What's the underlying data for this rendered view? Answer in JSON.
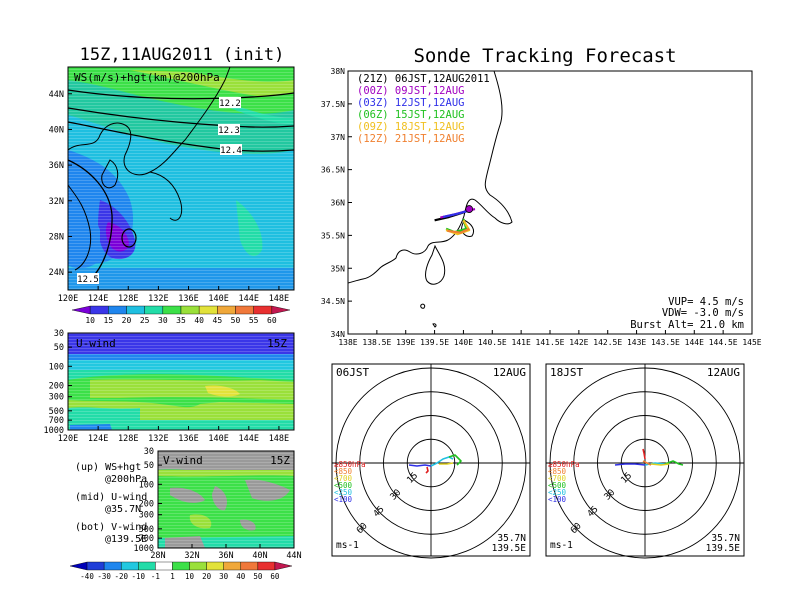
{
  "left_title": "15Z,11AUG2011 (init)",
  "right_title": "Sonde Tracking Forecast",
  "top_panel": {
    "label": "WS(m/s)+hgt(km)@200hPa",
    "lat_labels": [
      "44N",
      "40N",
      "36N",
      "32N",
      "28N",
      "24N"
    ],
    "lon_labels": [
      "120E",
      "124E",
      "128E",
      "132E",
      "136E",
      "140E",
      "144E",
      "148E"
    ],
    "contour_labels": [
      "12.2",
      "12.3",
      "12.4",
      "12.5"
    ],
    "colorbar": {
      "labels": [
        "10",
        "15",
        "20",
        "25",
        "30",
        "35",
        "40",
        "45",
        "50",
        "55",
        "60"
      ],
      "colors": [
        "#7a00d8",
        "#3a36e8",
        "#1f86ee",
        "#1fbfe0",
        "#22dca8",
        "#3ce048",
        "#9ae03a",
        "#e2e23a",
        "#f0a83a",
        "#f0783a",
        "#e83030",
        "#c21850"
      ]
    }
  },
  "u_panel": {
    "label": "U-wind",
    "time": "15Z",
    "p_labels": [
      "30",
      "50",
      "100",
      "200",
      "300",
      "500",
      "700",
      "1000"
    ],
    "lon_labels": [
      "120E",
      "124E",
      "128E",
      "132E",
      "136E",
      "140E",
      "144E",
      "148E"
    ]
  },
  "v_panel": {
    "label": "V-wind",
    "time": "15Z",
    "p_labels": [
      "30",
      "50",
      "100",
      "200",
      "300",
      "500",
      "700",
      "1000"
    ],
    "lat_labels": [
      "28N",
      "32N",
      "36N",
      "40N",
      "44N"
    ]
  },
  "notes": [
    "(up) WS+hgt",
    "@200hPa",
    "(mid) U-wind",
    "@35.7N",
    "(bot) V-wind",
    "@139.5E"
  ],
  "bottom_colorbar": {
    "labels": [
      "-40",
      "-30",
      "-20",
      "-10",
      "-1",
      "1",
      "10",
      "20",
      "30",
      "40",
      "50",
      "60"
    ],
    "colors": [
      "#0000b8",
      "#1f3ed8",
      "#1f86ee",
      "#22c8e0",
      "#22dca8",
      "#ffffff",
      "#3ce048",
      "#9ae03a",
      "#e2e23a",
      "#f0a83a",
      "#f0783a",
      "#e83030",
      "#c21850"
    ]
  },
  "track_map": {
    "lat_labels": [
      "38N",
      "37.5N",
      "37N",
      "36.5N",
      "36N",
      "35.5N",
      "35N",
      "34.5N",
      "34N"
    ],
    "lon_labels": [
      "138E",
      "138.5E",
      "139E",
      "139.5E",
      "140E",
      "140.5E",
      "141E",
      "141.5E",
      "142E",
      "142.5E",
      "143E",
      "143.5E",
      "144E",
      "144.5E",
      "145E"
    ],
    "legend": [
      {
        "text": "(21Z) 06JST,12AUG2011",
        "color": "#000000"
      },
      {
        "text": "(00Z) 09JST,12AUG",
        "color": "#a000c0"
      },
      {
        "text": "(03Z) 12JST,12AUG",
        "color": "#3030e8"
      },
      {
        "text": "(06Z) 15JST,12AUG",
        "color": "#20c020"
      },
      {
        "text": "(09Z) 18JST,12AUG",
        "color": "#f0c020"
      },
      {
        "text": "(12Z) 21JST,12AUG",
        "color": "#f08030"
      }
    ],
    "info": [
      "VUP= 4.5 m/s",
      "VDW= -3.0 m/s",
      "Burst Alt= 21.0 km"
    ]
  },
  "hodographs": [
    {
      "time": "06JST",
      "date": "12AUG",
      "loc1": "35.7N",
      "loc2": "139.5E",
      "units": "ms-1"
    },
    {
      "time": "18JST",
      "date": "12AUG",
      "loc1": "35.7N",
      "loc2": "139.5E",
      "units": "ms-1"
    }
  ],
  "hodo_rings": [
    "15",
    "30",
    "45",
    "60"
  ],
  "hodo_levels": [
    {
      "text": "≥850hPa",
      "color": "#e02020"
    },
    {
      "text": "<850",
      "color": "#f08030"
    },
    {
      "text": "<700",
      "color": "#e0d020"
    },
    {
      "text": "<500",
      "color": "#20c020"
    },
    {
      "text": "<250",
      "color": "#20c0e0"
    },
    {
      "text": "<100",
      "color": "#3030e8"
    }
  ],
  "chart_data": [
    {
      "type": "heatmap",
      "title": "WS(m/s)+hgt(km)@200hPa",
      "x_ticks": [
        "120E",
        "124E",
        "128E",
        "132E",
        "136E",
        "140E",
        "144E",
        "148E"
      ],
      "y_ticks": [
        "24N",
        "28N",
        "32N",
        "36N",
        "40N",
        "44N"
      ],
      "contour_levels_km": [
        12.2,
        12.3,
        12.4,
        12.5
      ],
      "colorbar_values": [
        10,
        15,
        20,
        25,
        30,
        35,
        40,
        45,
        50,
        55,
        60
      ]
    },
    {
      "type": "heatmap",
      "title": "U-wind",
      "x_ticks": [
        "120E",
        "124E",
        "128E",
        "132E",
        "136E",
        "140E",
        "144E",
        "148E"
      ],
      "y_ticks_hPa": [
        30,
        50,
        100,
        200,
        300,
        500,
        700,
        1000
      ]
    },
    {
      "type": "heatmap",
      "title": "V-wind",
      "x_ticks": [
        "28N",
        "32N",
        "36N",
        "40N",
        "44N"
      ],
      "y_ticks_hPa": [
        30,
        50,
        100,
        200,
        300,
        500,
        700,
        1000
      ],
      "colorbar_values": [
        -40,
        -30,
        -20,
        -10,
        -1,
        1,
        10,
        20,
        30,
        40,
        50,
        60
      ]
    },
    {
      "type": "line",
      "title": "Sonde Tracking Forecast",
      "xlim": [
        138,
        145
      ],
      "ylim": [
        34,
        38
      ],
      "launch": {
        "lon": 140.1,
        "lat": 35.9
      },
      "series": [
        {
          "name": "(21Z) 06JST,12AUG2011",
          "points": [
            [
              139.5,
              35.73
            ],
            [
              139.75,
              35.78
            ],
            [
              140.0,
              35.85
            ],
            [
              140.15,
              35.9
            ]
          ]
        },
        {
          "name": "(00Z) 09JST,12AUG",
          "points": [
            [
              139.6,
              35.77
            ],
            [
              139.85,
              35.82
            ],
            [
              140.1,
              35.88
            ],
            [
              140.2,
              35.9
            ]
          ]
        },
        {
          "name": "(03Z) 12JST,12AUG",
          "points": [
            [
              139.65,
              35.78
            ],
            [
              139.9,
              35.83
            ],
            [
              140.15,
              35.89
            ]
          ]
        },
        {
          "name": "(06Z) 15JST,12AUG",
          "points": [
            [
              139.7,
              35.6
            ],
            [
              139.85,
              35.55
            ],
            [
              140.05,
              35.6
            ],
            [
              140.0,
              35.75
            ]
          ]
        },
        {
          "name": "(09Z) 18JST,12AUG",
          "points": [
            [
              139.7,
              35.58
            ],
            [
              139.9,
              35.52
            ],
            [
              140.1,
              35.58
            ],
            [
              140.0,
              35.73
            ]
          ]
        },
        {
          "name": "(12Z) 21JST,12AUG",
          "points": [
            [
              139.72,
              35.57
            ],
            [
              139.95,
              35.54
            ],
            [
              140.1,
              35.6
            ]
          ]
        }
      ],
      "annotations": [
        "VUP= 4.5 m/s",
        "VDW= -3.0 m/s",
        "Burst Alt= 21.0 km"
      ]
    }
  ]
}
